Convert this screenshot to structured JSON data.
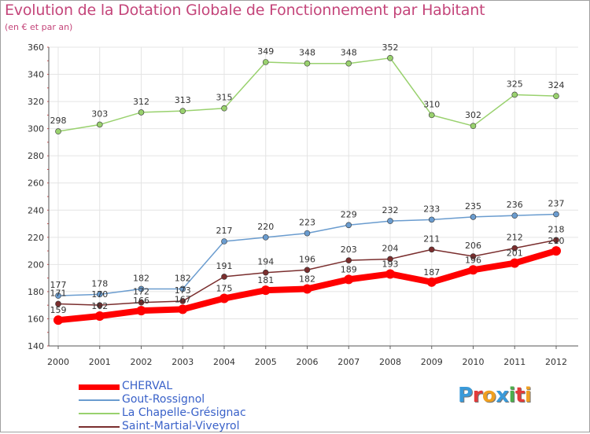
{
  "title": "Evolution de la Dotation Globale de Fonctionnement par Habitant",
  "subtitle": "(en € et par an)",
  "logo": {
    "text": "Proxiti",
    "colors": [
      "#3a9ad9",
      "#e23b3b",
      "#f0a020",
      "#3a9ad9",
      "#4cae4c",
      "#e23b3b",
      "#f0a020"
    ]
  },
  "chart_data": {
    "type": "line",
    "title": "Evolution de la Dotation Globale de Fonctionnement par Habitant",
    "subtitle": "(en € et par an)",
    "xlabel": "",
    "ylabel": "",
    "x": [
      "2000",
      "2001",
      "2002",
      "2003",
      "2004",
      "2005",
      "2006",
      "2007",
      "2008",
      "2009",
      "2010",
      "2011",
      "2012"
    ],
    "ylim": [
      140,
      360
    ],
    "yticks": [
      140,
      160,
      180,
      200,
      220,
      240,
      260,
      280,
      300,
      320,
      340,
      360
    ],
    "grid": true,
    "legend_position": "bottom-left",
    "series": [
      {
        "name": "CHERVAL",
        "color": "#ff0000",
        "values": [
          159,
          162,
          166,
          167,
          175,
          181,
          182,
          189,
          193,
          187,
          196,
          201,
          210
        ],
        "labels": [
          "159",
          "162",
          "166",
          "167",
          "175",
          "181",
          "182",
          "189",
          "193",
          "187",
          "196",
          "201",
          "210"
        ]
      },
      {
        "name": "Gout-Rossignol",
        "color": "#6a9ccf",
        "values": [
          177,
          178,
          182,
          182,
          217,
          220,
          223,
          229,
          232,
          233,
          235,
          236,
          237
        ],
        "labels": [
          "177",
          "178",
          "182",
          "182",
          "217",
          "220",
          "223",
          "229",
          "232",
          "233",
          "235",
          "236",
          "237"
        ]
      },
      {
        "name": "La Chapelle-Grésignac",
        "color": "#99d16e",
        "values": [
          298,
          303,
          312,
          313,
          315,
          349,
          348,
          348,
          352,
          310,
          302,
          325,
          324
        ],
        "labels": [
          "298",
          "303",
          "312",
          "313",
          "315",
          "349",
          "348",
          "348",
          "352",
          "310",
          "302",
          "325",
          "324"
        ]
      },
      {
        "name": "Saint-Martial-Viveyrol",
        "color": "#7a2e2e",
        "values": [
          171,
          170,
          172,
          173,
          191,
          194,
          196,
          203,
          204,
          211,
          206,
          212,
          218
        ],
        "labels": [
          "171",
          "170",
          "172",
          "173",
          "191",
          "194",
          "196",
          "203",
          "204",
          "211",
          "206",
          "212",
          "218"
        ]
      }
    ]
  }
}
